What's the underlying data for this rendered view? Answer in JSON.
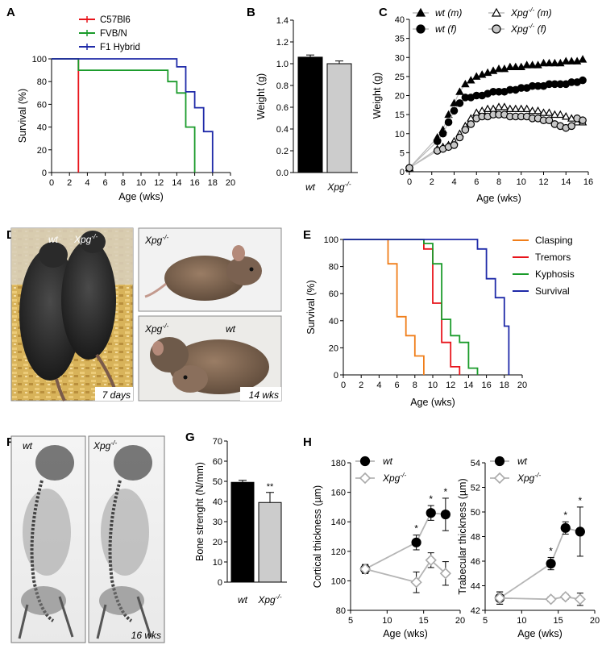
{
  "panels": {
    "A": {
      "letter": "A",
      "xlabel": "Age (wks)",
      "ylabel": "Survival (%)",
      "legend": [
        {
          "name": "C57Bl6",
          "color": "#e8141b"
        },
        {
          "name": "FVB/N",
          "color": "#1a9b2a"
        },
        {
          "name": "F1 Hybrid",
          "color": "#1f2aa8"
        }
      ]
    },
    "B": {
      "letter": "B",
      "ylabel": "Weight (g)"
    },
    "C": {
      "letter": "C",
      "xlabel": "Age (wks)",
      "ylabel": "Weight (g)",
      "legend": [
        "wt (m)",
        "wt (f)",
        "Xpg-/- (m)",
        "Xpg-/- (f)"
      ]
    },
    "D": {
      "letter": "D",
      "photos": [
        {
          "labels": [
            "wt",
            "Xpg-/-"
          ],
          "caption": "7 days"
        },
        {
          "labels": [
            "Xpg-/-"
          ],
          "caption": ""
        },
        {
          "labels": [
            "Xpg-/-",
            "wt"
          ],
          "caption": "14 wks"
        }
      ]
    },
    "E": {
      "letter": "E",
      "xlabel": "Age (wks)",
      "ylabel": "Survival (%)",
      "legend": [
        {
          "name": "Clasping",
          "color": "#f07e1a"
        },
        {
          "name": "Tremors",
          "color": "#e8141b"
        },
        {
          "name": "Kyphosis",
          "color": "#1a9b2a"
        },
        {
          "name": "Survival",
          "color": "#1f2aa8"
        }
      ]
    },
    "F": {
      "letter": "F",
      "photos": [
        {
          "labels": [
            "wt"
          ],
          "caption": ""
        },
        {
          "labels": [
            "Xpg-/-"
          ],
          "caption": "16 wks"
        }
      ]
    },
    "G": {
      "letter": "G",
      "ylabel": "Bone strenght (N/mm)",
      "annotation": "**"
    },
    "H": {
      "letter": "H",
      "xlabel": "Age (wks)",
      "left_ylabel": "Cortical thickness (µm)",
      "right_ylabel": "Trabecular thickness (µm)",
      "legend": [
        "wt",
        "Xpg-/-"
      ],
      "annotation": "*"
    }
  },
  "chart_data": [
    {
      "panel": "A",
      "type": "line",
      "step": true,
      "xlim": [
        0,
        20
      ],
      "ylim": [
        0,
        100
      ],
      "xticks": [
        0,
        2,
        4,
        6,
        8,
        10,
        12,
        14,
        16,
        18,
        20
      ],
      "yticks": [
        0,
        20,
        40,
        60,
        80,
        100
      ],
      "series": [
        {
          "name": "C57Bl6",
          "color": "#e8141b",
          "points": [
            [
              0,
              100
            ],
            [
              3,
              100
            ],
            [
              3,
              0
            ]
          ]
        },
        {
          "name": "FVB/N",
          "color": "#1a9b2a",
          "points": [
            [
              0,
              100
            ],
            [
              3,
              100
            ],
            [
              3,
              90
            ],
            [
              13,
              90
            ],
            [
              13,
              80
            ],
            [
              14,
              80
            ],
            [
              14,
              70
            ],
            [
              15,
              70
            ],
            [
              15,
              40
            ],
            [
              16,
              40
            ],
            [
              16,
              0
            ]
          ]
        },
        {
          "name": "F1 Hybrid",
          "color": "#1f2aa8",
          "points": [
            [
              0,
              100
            ],
            [
              14,
              100
            ],
            [
              14,
              93
            ],
            [
              15,
              93
            ],
            [
              15,
              71
            ],
            [
              16,
              71
            ],
            [
              16,
              57
            ],
            [
              17,
              57
            ],
            [
              17,
              36
            ],
            [
              18,
              36
            ],
            [
              18,
              0
            ]
          ]
        }
      ]
    },
    {
      "panel": "B",
      "type": "bar",
      "categories": [
        "wt",
        "Xpg-/-"
      ],
      "values": [
        1.06,
        1.0
      ],
      "errors": [
        0.02,
        0.025
      ],
      "colors": [
        "#000000",
        "#cccccc"
      ],
      "ylim": [
        0,
        1.4
      ],
      "yticks": [
        0.0,
        0.2,
        0.4,
        0.6,
        0.8,
        1.0,
        1.2,
        1.4
      ]
    },
    {
      "panel": "C",
      "type": "scatter",
      "xlim": [
        0,
        16
      ],
      "ylim": [
        0,
        40
      ],
      "xticks": [
        0,
        2,
        4,
        6,
        8,
        10,
        12,
        14,
        16
      ],
      "yticks": [
        0,
        5,
        10,
        15,
        20,
        25,
        30,
        35,
        40
      ],
      "series": [
        {
          "name": "wt (m)",
          "marker": "triangle",
          "fill": "#000000",
          "x": [
            0,
            2.5,
            3,
            3.5,
            4,
            4.5,
            5,
            5.5,
            6,
            6.5,
            7,
            7.5,
            8,
            8.5,
            9,
            9.5,
            10,
            10.5,
            11,
            11.5,
            12,
            12.5,
            13,
            13.5,
            14,
            14.5,
            15,
            15.5
          ],
          "y": [
            1,
            9,
            11,
            15,
            18,
            21,
            23,
            24,
            25,
            25.5,
            26,
            26.5,
            27,
            27,
            27.5,
            27.5,
            27.5,
            28,
            28,
            28,
            28.5,
            28.5,
            28.5,
            28.5,
            29,
            29,
            29,
            29.5
          ]
        },
        {
          "name": "wt (f)",
          "marker": "circle",
          "fill": "#000000",
          "x": [
            0,
            2.5,
            3,
            3.5,
            4,
            4.5,
            5,
            5.5,
            6,
            6.5,
            7,
            7.5,
            8,
            8.5,
            9,
            9.5,
            10,
            10.5,
            11,
            11.5,
            12,
            12.5,
            13,
            13.5,
            14,
            14.5,
            15,
            15.5
          ],
          "y": [
            1,
            8,
            10,
            13,
            16,
            18,
            19.5,
            19.5,
            20,
            20,
            20.5,
            21,
            21,
            21,
            21.5,
            21.5,
            22,
            22,
            22.5,
            22.5,
            22.5,
            23,
            23,
            23,
            23,
            23.5,
            23.5,
            24
          ]
        },
        {
          "name": "Xpg-/- (m)",
          "marker": "triangle",
          "fill": "#ffffff",
          "x": [
            0,
            2.5,
            3,
            3.5,
            4,
            4.5,
            5,
            5.5,
            6,
            6.5,
            7,
            7.5,
            8,
            8.5,
            9,
            9.5,
            10,
            10.5,
            11,
            11.5,
            12,
            12.5,
            13,
            13.5,
            14,
            14.5,
            15,
            15.5
          ],
          "y": [
            1,
            6,
            6.5,
            7,
            8,
            10,
            12,
            14,
            15.5,
            16,
            16.5,
            16.5,
            17,
            17,
            16.5,
            16.5,
            16.5,
            16.5,
            16,
            16,
            15.5,
            15.5,
            15,
            15,
            14.5,
            14,
            13,
            13
          ]
        },
        {
          "name": "Xpg-/- (f)",
          "marker": "circle",
          "fill": "#c8c8c8",
          "x": [
            0,
            2.5,
            3,
            3.5,
            4,
            4.5,
            5,
            5.5,
            6,
            6.5,
            7,
            7.5,
            8,
            8.5,
            9,
            9.5,
            10,
            10.5,
            11,
            11.5,
            12,
            12.5,
            13,
            13.5,
            14,
            14.5,
            15,
            15.5
          ],
          "y": [
            1,
            5.5,
            6,
            6.5,
            7,
            9,
            11,
            12.5,
            14,
            14.5,
            14.5,
            15,
            15,
            15,
            14.5,
            14.5,
            14.5,
            14.5,
            14,
            14,
            13.5,
            13.5,
            12.5,
            12,
            11.5,
            12,
            14,
            13.5
          ]
        }
      ]
    },
    {
      "panel": "E",
      "type": "line",
      "step": true,
      "xlim": [
        0,
        20
      ],
      "ylim": [
        0,
        100
      ],
      "xticks": [
        0,
        2,
        4,
        6,
        8,
        10,
        12,
        14,
        16,
        18,
        20
      ],
      "yticks": [
        0,
        20,
        40,
        60,
        80,
        100
      ],
      "series": [
        {
          "name": "Clasping",
          "color": "#f07e1a",
          "points": [
            [
              0,
              100
            ],
            [
              5,
              100
            ],
            [
              5,
              82
            ],
            [
              6,
              82
            ],
            [
              6,
              43
            ],
            [
              7,
              43
            ],
            [
              7,
              29
            ],
            [
              8,
              29
            ],
            [
              8,
              14
            ],
            [
              9,
              14
            ],
            [
              9,
              0
            ]
          ]
        },
        {
          "name": "Tremors",
          "color": "#e8141b",
          "points": [
            [
              0,
              100
            ],
            [
              9,
              100
            ],
            [
              9,
              93
            ],
            [
              10,
              93
            ],
            [
              10,
              53
            ],
            [
              11,
              53
            ],
            [
              11,
              24
            ],
            [
              12,
              24
            ],
            [
              12,
              6
            ],
            [
              13,
              6
            ],
            [
              13,
              0
            ]
          ]
        },
        {
          "name": "Kyphosis",
          "color": "#1a9b2a",
          "points": [
            [
              0,
              100
            ],
            [
              9,
              100
            ],
            [
              9,
              97
            ],
            [
              10,
              97
            ],
            [
              10,
              82
            ],
            [
              11,
              82
            ],
            [
              11,
              41
            ],
            [
              12,
              41
            ],
            [
              12,
              29
            ],
            [
              13,
              29
            ],
            [
              13,
              24
            ],
            [
              14,
              24
            ],
            [
              14,
              5
            ],
            [
              15,
              5
            ],
            [
              15,
              0
            ]
          ]
        },
        {
          "name": "Survival",
          "color": "#1f2aa8",
          "points": [
            [
              0,
              100
            ],
            [
              15,
              100
            ],
            [
              15,
              93
            ],
            [
              16,
              93
            ],
            [
              16,
              71
            ],
            [
              17,
              71
            ],
            [
              17,
              57
            ],
            [
              18,
              57
            ],
            [
              18,
              36
            ],
            [
              18.5,
              36
            ],
            [
              18.5,
              0
            ]
          ]
        }
      ]
    },
    {
      "panel": "G",
      "type": "bar",
      "categories": [
        "wt",
        "Xpg-/-"
      ],
      "values": [
        49.5,
        39.5
      ],
      "errors": [
        1,
        5
      ],
      "colors": [
        "#000000",
        "#cccccc"
      ],
      "ylim": [
        0,
        70
      ],
      "yticks": [
        0,
        10,
        20,
        30,
        40,
        50,
        60,
        70
      ]
    },
    {
      "panel": "H-left",
      "type": "line",
      "xlim": [
        5,
        20
      ],
      "ylim": [
        80,
        180
      ],
      "xticks": [
        5,
        10,
        15,
        20
      ],
      "yticks": [
        80,
        100,
        120,
        140,
        160,
        180
      ],
      "series": [
        {
          "name": "wt",
          "marker": "circle",
          "fill": "#000000",
          "x": [
            7,
            14,
            16,
            18
          ],
          "y": [
            108,
            126,
            146,
            145
          ],
          "err": [
            3,
            5,
            5,
            11
          ]
        },
        {
          "name": "Xpg-/-",
          "marker": "diamond",
          "fill": "#ffffff",
          "x": [
            7,
            14,
            16,
            18
          ],
          "y": [
            108,
            99,
            114,
            105
          ],
          "err": [
            3,
            7,
            5,
            8
          ]
        }
      ],
      "significance": [
        {
          "x": 14,
          "label": "*"
        },
        {
          "x": 16,
          "label": "*"
        },
        {
          "x": 18,
          "label": "*"
        }
      ]
    },
    {
      "panel": "H-right",
      "type": "line",
      "xlim": [
        5,
        20
      ],
      "ylim": [
        42,
        54
      ],
      "xticks": [
        5,
        10,
        15,
        20
      ],
      "yticks": [
        42,
        44,
        46,
        48,
        50,
        52,
        54
      ],
      "series": [
        {
          "name": "wt",
          "marker": "circle",
          "fill": "#000000",
          "x": [
            7,
            14,
            16,
            18
          ],
          "y": [
            43,
            45.8,
            48.7,
            48.4
          ],
          "err": [
            0.5,
            0.5,
            0.5,
            2
          ]
        },
        {
          "name": "Xpg-/-",
          "marker": "diamond",
          "fill": "#ffffff",
          "x": [
            7,
            14,
            16,
            18
          ],
          "y": [
            43,
            42.9,
            43.1,
            42.9
          ],
          "err": [
            0.5,
            0.2,
            0.2,
            0.5
          ]
        }
      ],
      "significance": [
        {
          "x": 14,
          "label": "*"
        },
        {
          "x": 16,
          "label": "*"
        },
        {
          "x": 18,
          "label": "*"
        }
      ]
    }
  ]
}
